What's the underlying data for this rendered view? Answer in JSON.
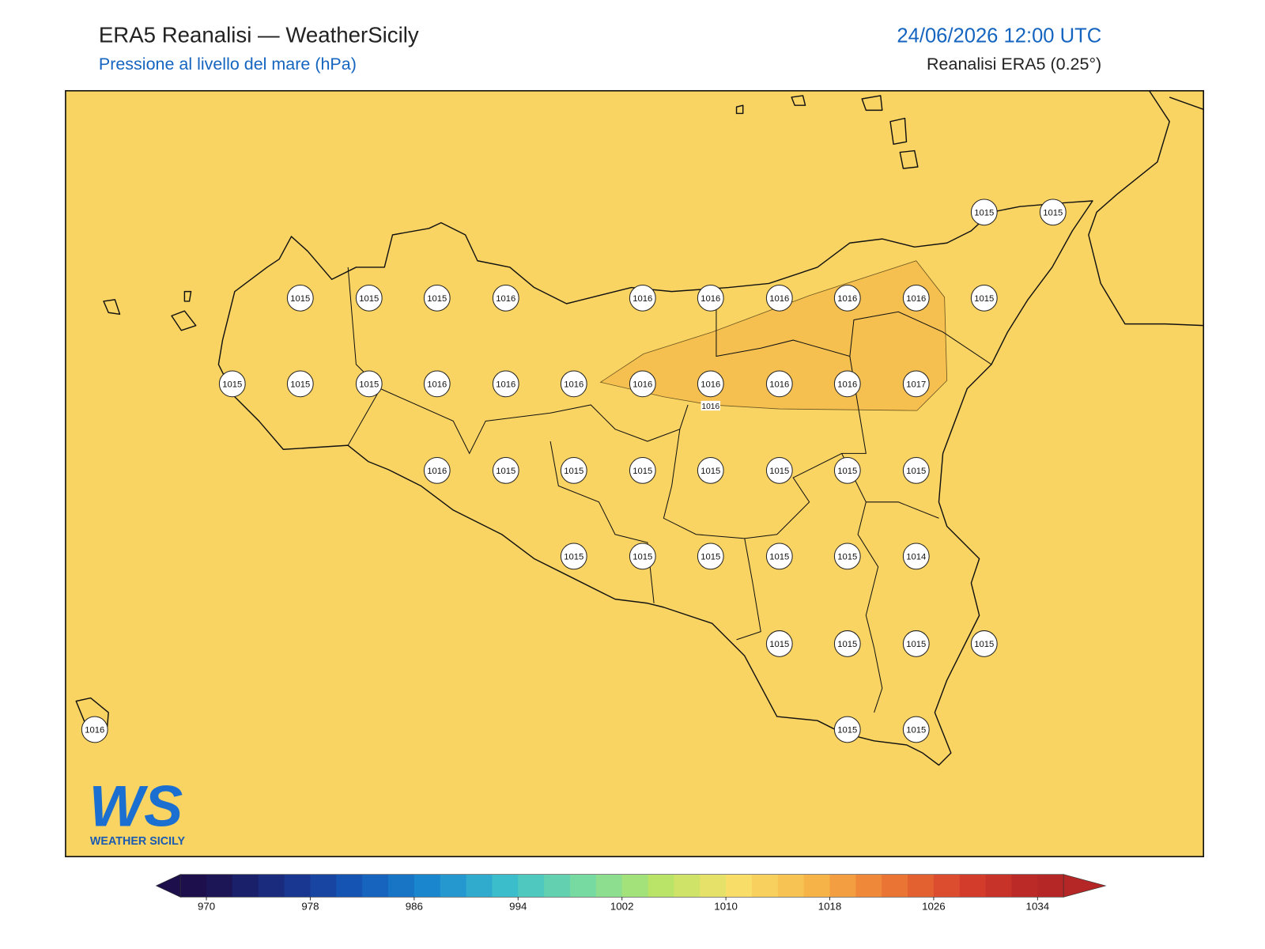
{
  "header": {
    "title": "ERA5 Reanalisi — WeatherSicily",
    "subtitle": "Pressione al livello del mare (hPa)",
    "datetime": "24/06/2026 12:00 UTC",
    "source": "Reanalisi ERA5 (0.25°)"
  },
  "stations": [
    {
      "value": 1015
    },
    {
      "value": 1015
    },
    {
      "value": 1015
    },
    {
      "value": 1015
    },
    {
      "value": 1015
    },
    {
      "value": 1016
    },
    {
      "value": 1016
    },
    {
      "value": 1016
    },
    {
      "value": 1016
    },
    {
      "value": 1016
    },
    {
      "value": 1016
    },
    {
      "value": 1015
    },
    {
      "value": 1015
    },
    {
      "value": 1015
    },
    {
      "value": 1015
    },
    {
      "value": 1016
    },
    {
      "value": 1016
    },
    {
      "value": 1016
    },
    {
      "value": 1016
    },
    {
      "value": 1016
    },
    {
      "value": 1016
    },
    {
      "value": 1016
    },
    {
      "value": 1017
    },
    {
      "value": 1016
    },
    {
      "value": 1015
    },
    {
      "value": 1015
    },
    {
      "value": 1015
    },
    {
      "value": 1015
    },
    {
      "value": 1015
    },
    {
      "value": 1015
    },
    {
      "value": 1015
    },
    {
      "value": 1015
    },
    {
      "value": 1015
    },
    {
      "value": 1015
    },
    {
      "value": 1015
    },
    {
      "value": 1015
    },
    {
      "value": 1014
    },
    {
      "value": 1015
    },
    {
      "value": 1015
    },
    {
      "value": 1015
    },
    {
      "value": 1015
    },
    {
      "value": 1016
    },
    {
      "value": 1015
    },
    {
      "value": 1015
    }
  ],
  "contour_label": 1016,
  "colorbar": {
    "ticks": [
      970,
      978,
      986,
      994,
      1002,
      1010,
      1018,
      1026,
      1034
    ],
    "step": 2,
    "colors": [
      "#1c0f4c",
      "#1a2f86",
      "#1558b8",
      "#1a8ad0",
      "#3ec0cc",
      "#78dba0",
      "#b8e468",
      "#f8e06a",
      "#f7b84a",
      "#ec7a34",
      "#d8402c",
      "#b52626"
    ]
  },
  "logo": {
    "letters": "WS",
    "name": "WEATHER SICILY"
  }
}
